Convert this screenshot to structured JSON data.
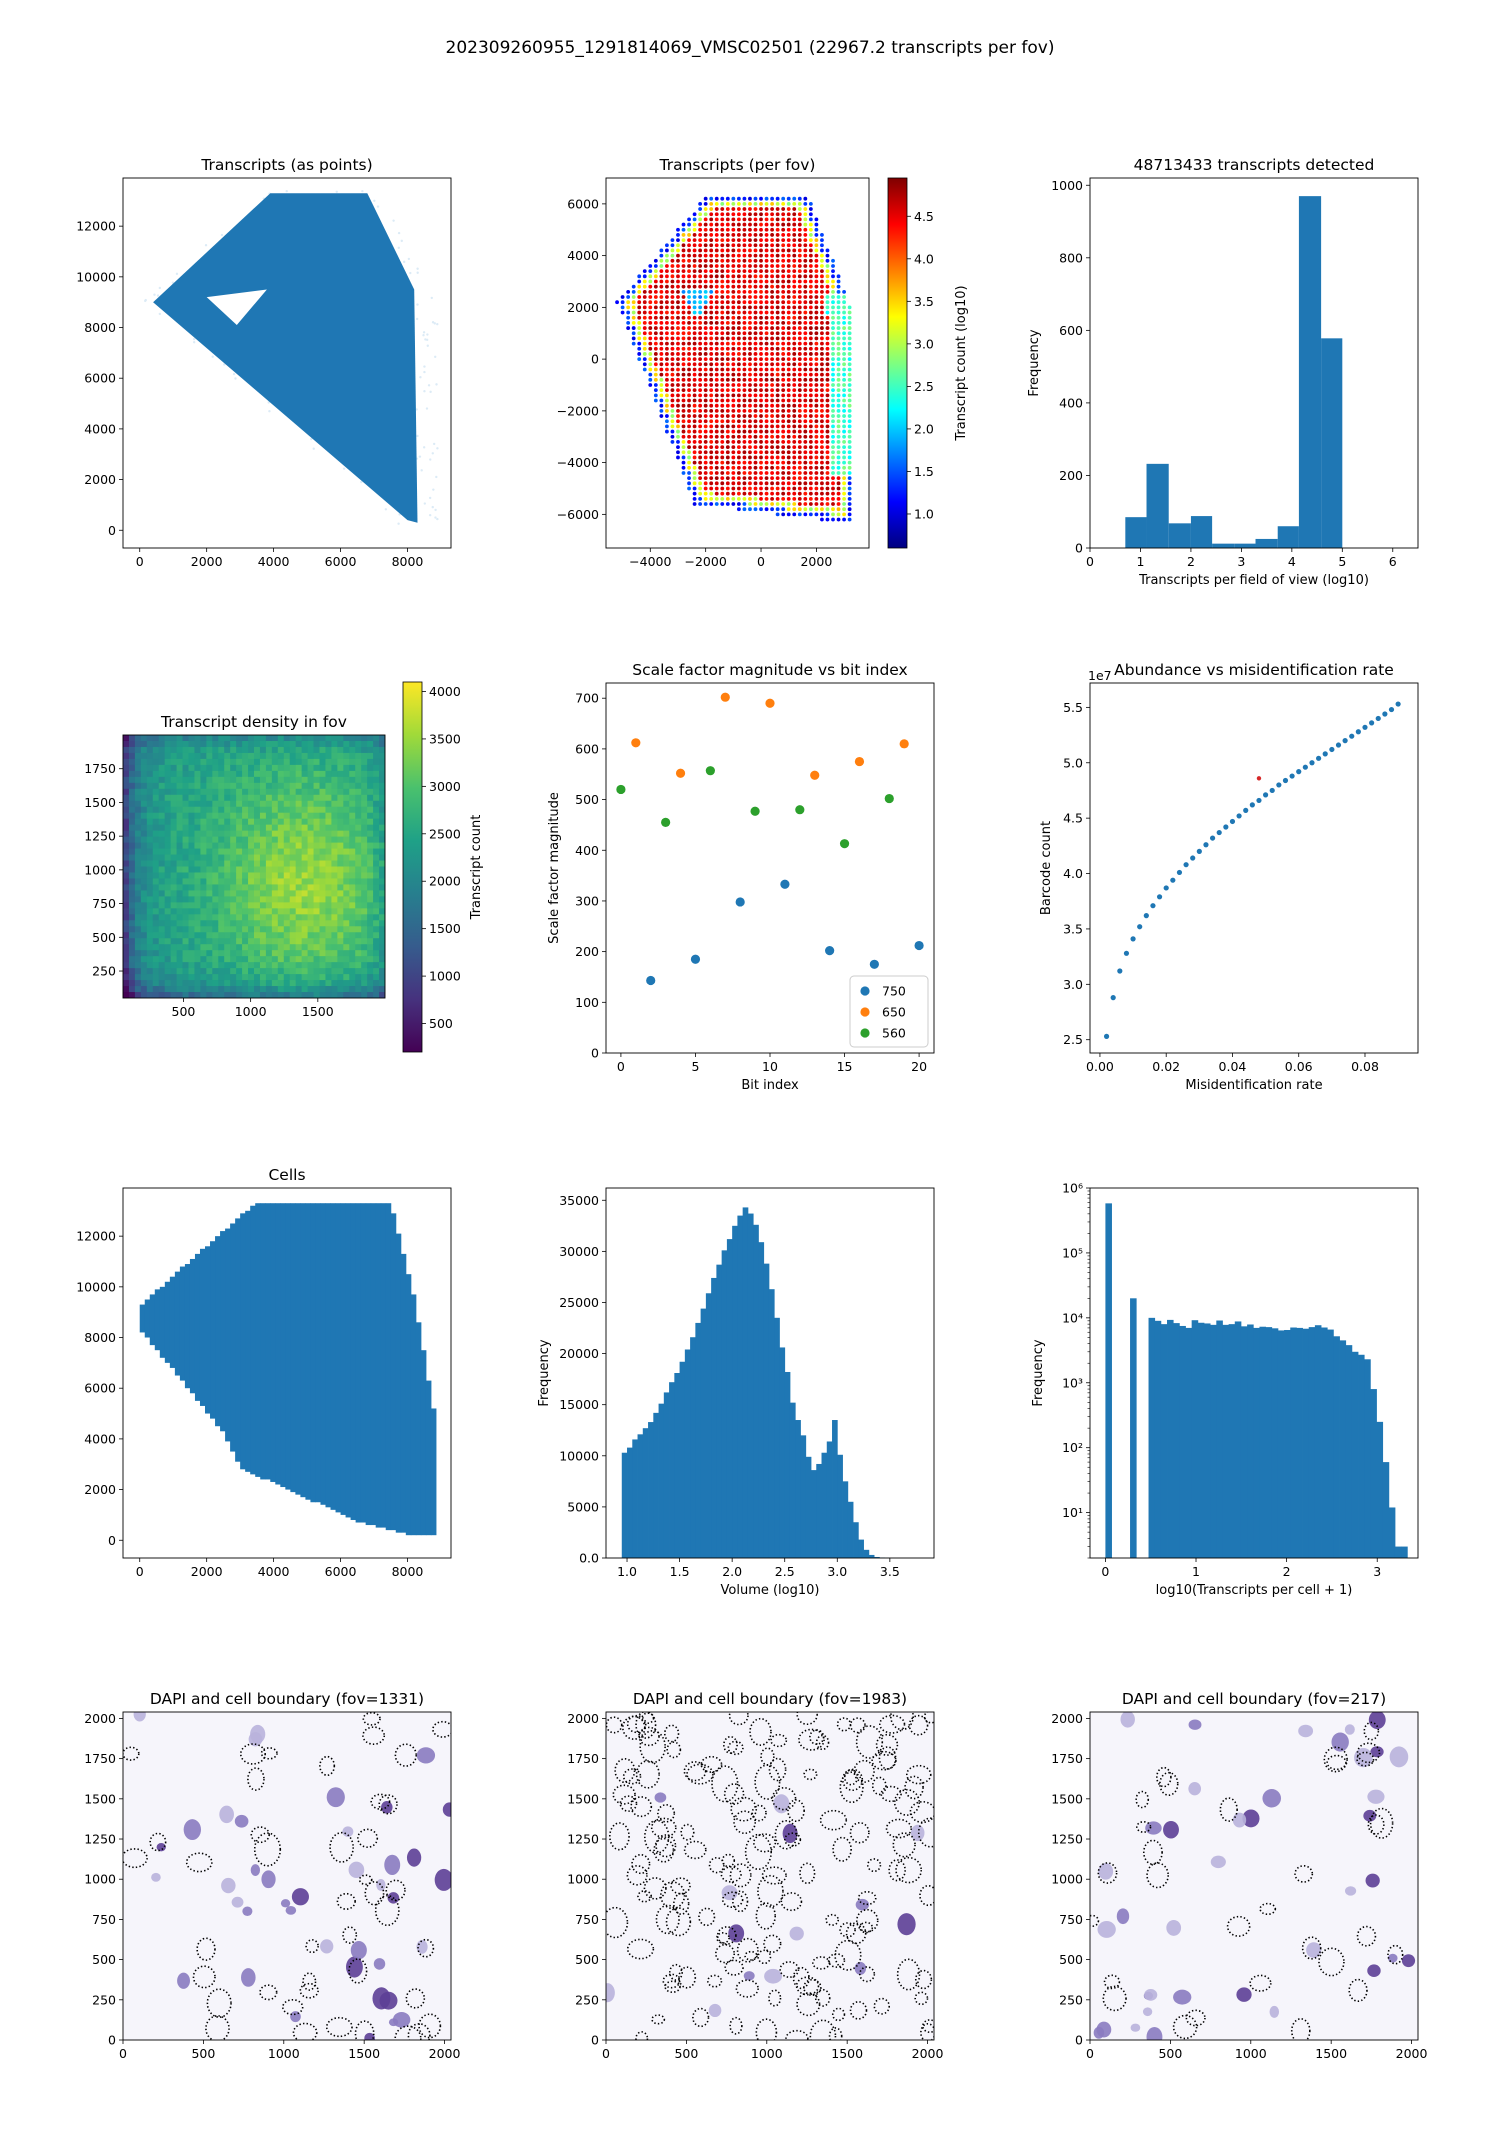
{
  "figure": {
    "suptitle": "202309260955_1291814069_VMSC02501 (22967.2 transcripts per fov)"
  },
  "colors": {
    "blue": "#1f77b4",
    "orange": "#ff7f0e",
    "green": "#2ca02c",
    "red": "#d62728"
  },
  "chart_data": [
    {
      "id": "p1",
      "type": "scatter",
      "title": "Transcripts (as points)",
      "xlabel": "",
      "ylabel": "",
      "xlim": [
        -500,
        9300
      ],
      "ylim": [
        -700,
        13900
      ],
      "xticks": [
        0,
        2000,
        4000,
        6000,
        8000
      ],
      "yticks": [
        0,
        2000,
        4000,
        6000,
        8000,
        10000,
        12000
      ],
      "tissue_outline": [
        [
          400,
          9000
        ],
        [
          3900,
          13300
        ],
        [
          6800,
          13300
        ],
        [
          8200,
          9500
        ],
        [
          8300,
          300
        ],
        [
          8000,
          400
        ],
        [
          400,
          9000
        ]
      ],
      "hole_outline": [
        [
          2000,
          9200
        ],
        [
          3800,
          9500
        ],
        [
          2900,
          8100
        ],
        [
          2000,
          9200
        ]
      ],
      "color": "#1f77b4"
    },
    {
      "id": "p2",
      "type": "heatmap",
      "title": "Transcripts (per fov)",
      "xlabel": "",
      "ylabel": "",
      "xlim": [
        -5600,
        3900
      ],
      "ylim": [
        -7300,
        7000
      ],
      "xticks": [
        -4000,
        -2000,
        0,
        2000
      ],
      "yticks": [
        -6000,
        -4000,
        -2000,
        0,
        2000,
        4000,
        6000
      ],
      "colorbar": {
        "label": "Transcript count (log10)",
        "range": [
          0.6,
          4.95
        ],
        "ticks": [
          1.0,
          1.5,
          2.0,
          2.5,
          3.0,
          3.5,
          4.0,
          4.5
        ],
        "colormap": "jet"
      },
      "grid_spacing": 200
    },
    {
      "id": "p3",
      "type": "bar",
      "title": "48713433 transcripts detected",
      "xlabel": "Transcripts per field of view (log10)",
      "ylabel": "Frequency",
      "xlim": [
        0,
        6.5
      ],
      "ylim": [
        0,
        1020
      ],
      "xticks": [
        0,
        1,
        2,
        3,
        4,
        5,
        6
      ],
      "yticks": [
        0,
        200,
        400,
        600,
        800,
        1000
      ],
      "bin_edges": [
        0.7,
        1.12,
        1.56,
        2.0,
        2.42,
        2.86,
        3.28,
        3.72,
        4.14,
        4.58,
        5.0
      ],
      "values": [
        85,
        232,
        68,
        88,
        12,
        12,
        25,
        60,
        970,
        578
      ]
    },
    {
      "id": "p4",
      "type": "heatmap",
      "title": "Transcript density in fov",
      "xlabel": "",
      "ylabel": "",
      "xlim": [
        50,
        2000
      ],
      "ylim": [
        50,
        2000
      ],
      "xticks": [
        500,
        1000,
        1500
      ],
      "yticks": [
        250,
        500,
        750,
        1000,
        1250,
        1500,
        1750
      ],
      "colorbar": {
        "label": "Transcript count",
        "range": [
          200,
          4100
        ],
        "ticks": [
          500,
          1000,
          1500,
          2000,
          2500,
          3000,
          3500,
          4000
        ],
        "colormap": "viridis"
      }
    },
    {
      "id": "p5",
      "type": "scatter",
      "title": "Scale factor magnitude vs bit index",
      "xlabel": "Bit index",
      "ylabel": "Scale factor magnitude",
      "xlim": [
        -1,
        21
      ],
      "ylim": [
        0,
        730
      ],
      "xticks": [
        0,
        5,
        10,
        15,
        20
      ],
      "yticks": [
        0,
        100,
        200,
        300,
        400,
        500,
        600,
        700
      ],
      "legend": "lower right",
      "series": [
        {
          "name": "750",
          "color": "#1f77b4",
          "x": [
            2,
            5,
            8,
            11,
            14,
            17,
            20
          ],
          "y": [
            143,
            185,
            298,
            333,
            202,
            175,
            212
          ]
        },
        {
          "name": "650",
          "color": "#ff7f0e",
          "x": [
            1,
            4,
            7,
            10,
            13,
            16,
            19
          ],
          "y": [
            612,
            552,
            702,
            690,
            548,
            575,
            610
          ]
        },
        {
          "name": "560",
          "color": "#2ca02c",
          "x": [
            0,
            3,
            6,
            9,
            12,
            15,
            18
          ],
          "y": [
            520,
            455,
            557,
            477,
            480,
            413,
            502
          ]
        }
      ]
    },
    {
      "id": "p6",
      "type": "scatter",
      "title": "Abundance vs misidentification rate",
      "xlabel": "Misidentification rate",
      "ylabel": "Barcode count",
      "xlim": [
        -0.003,
        0.096
      ],
      "ylim": [
        2.38,
        5.72
      ],
      "xticks": [
        0.0,
        0.02,
        0.04,
        0.06,
        0.08
      ],
      "yticks": [
        2.5,
        3.0,
        3.5,
        4.0,
        4.5,
        5.0,
        5.5
      ],
      "offset_label": "1e7",
      "series": [
        {
          "name": "",
          "color": "#1f77b4",
          "x": [
            0.002,
            0.004,
            0.006,
            0.008,
            0.01,
            0.012,
            0.014,
            0.016,
            0.018,
            0.02,
            0.022,
            0.024,
            0.026,
            0.028,
            0.03,
            0.032,
            0.034,
            0.036,
            0.038,
            0.04,
            0.042,
            0.044,
            0.046,
            0.048,
            0.05,
            0.052,
            0.054,
            0.056,
            0.058,
            0.06,
            0.062,
            0.064,
            0.066,
            0.068,
            0.07,
            0.072,
            0.074,
            0.076,
            0.078,
            0.08,
            0.082,
            0.084,
            0.086,
            0.088,
            0.09
          ],
          "y": [
            2.53,
            2.88,
            3.12,
            3.28,
            3.41,
            3.52,
            3.62,
            3.71,
            3.79,
            3.87,
            3.94,
            4.01,
            4.08,
            4.14,
            4.2,
            4.26,
            4.32,
            4.37,
            4.42,
            4.47,
            4.52,
            4.57,
            4.62,
            4.66,
            4.71,
            4.75,
            4.8,
            4.84,
            4.88,
            4.92,
            4.96,
            5.0,
            5.04,
            5.08,
            5.12,
            5.16,
            5.2,
            5.24,
            5.28,
            5.32,
            5.36,
            5.4,
            5.44,
            5.48,
            5.53
          ]
        },
        {
          "name": "",
          "color": "#d62728",
          "x": [
            0.048
          ],
          "y": [
            4.86
          ]
        }
      ]
    },
    {
      "id": "p7",
      "type": "scatter",
      "title": "Cells",
      "xlabel": "",
      "ylabel": "",
      "xlim": [
        -500,
        9300
      ],
      "ylim": [
        -700,
        13900
      ],
      "xticks": [
        0,
        2000,
        4000,
        6000,
        8000
      ],
      "yticks": [
        0,
        2000,
        4000,
        6000,
        8000,
        10000,
        12000
      ],
      "tissue_outline": [
        [
          0,
          9200
        ],
        [
          0,
          8300
        ],
        [
          2500,
          4200
        ],
        [
          3000,
          2800
        ],
        [
          6500,
          700
        ],
        [
          8000,
          200
        ],
        [
          8900,
          200
        ],
        [
          8900,
          4200
        ],
        [
          8200,
          9500
        ],
        [
          7500,
          13300
        ],
        [
          3400,
          13200
        ],
        [
          0,
          9200
        ]
      ],
      "color": "#1f77b4"
    },
    {
      "id": "p8",
      "type": "bar",
      "title": "",
      "xlabel": "Volume (log10)",
      "ylabel": "Frequency",
      "xlim": [
        0.8,
        3.92
      ],
      "ylim": [
        0,
        36200
      ],
      "xticks": [
        1.0,
        1.5,
        2.0,
        2.5,
        3.0,
        3.5
      ],
      "yticks": [
        0,
        5000,
        10000,
        15000,
        20000,
        25000,
        30000,
        35000
      ],
      "bin_edges": [
        0.95,
        1.0,
        1.05,
        1.1,
        1.15,
        1.2,
        1.25,
        1.3,
        1.35,
        1.4,
        1.45,
        1.5,
        1.55,
        1.6,
        1.65,
        1.7,
        1.75,
        1.8,
        1.85,
        1.9,
        1.95,
        2.0,
        2.05,
        2.1,
        2.15,
        2.2,
        2.25,
        2.3,
        2.35,
        2.4,
        2.45,
        2.5,
        2.55,
        2.6,
        2.65,
        2.7,
        2.75,
        2.8,
        2.85,
        2.9,
        2.95,
        3.0,
        3.05,
        3.1,
        3.15,
        3.2,
        3.25,
        3.3,
        3.35,
        3.4,
        3.45,
        3.5
      ],
      "values": [
        10300,
        10800,
        11600,
        12100,
        12700,
        13300,
        14200,
        15100,
        16200,
        17200,
        18100,
        19200,
        20400,
        21600,
        23000,
        24400,
        25900,
        27400,
        28700,
        30100,
        31200,
        32500,
        33500,
        34300,
        33700,
        32600,
        30900,
        28800,
        26300,
        23500,
        20600,
        18200,
        15200,
        13500,
        12000,
        9900,
        8600,
        9200,
        10300,
        11400,
        13500,
        10100,
        7500,
        5500,
        3500,
        1800,
        800,
        300,
        100,
        50,
        20
      ]
    },
    {
      "id": "p9",
      "type": "bar",
      "title": "",
      "xlabel": "log10(Transcripts per cell + 1)",
      "ylabel": "Frequency",
      "yscale": "log",
      "xlim": [
        -0.17,
        3.45
      ],
      "ylim": [
        2,
        1000000
      ],
      "xticks": [
        0,
        1,
        2,
        3
      ],
      "xticklabels": [
        "0",
        "1",
        "2",
        "3"
      ],
      "yticks": [
        10,
        100,
        1000,
        10000,
        100000,
        1000000
      ],
      "yticklabels": [
        "10¹",
        "10²",
        "10³",
        "10⁴",
        "10⁵",
        "10⁶"
      ],
      "bin_edges": [
        0.0,
        0.068,
        0.272,
        0.34,
        0.476,
        0.544,
        0.612,
        0.68,
        0.748,
        0.816,
        0.884,
        0.952,
        1.02,
        1.088,
        1.156,
        1.224,
        1.292,
        1.36,
        1.428,
        1.496,
        1.564,
        1.632,
        1.7,
        1.768,
        1.836,
        1.904,
        1.972,
        2.04,
        2.108,
        2.176,
        2.244,
        2.312,
        2.38,
        2.448,
        2.516,
        2.584,
        2.652,
        2.72,
        2.788,
        2.856,
        2.924,
        2.992,
        3.06,
        3.128,
        3.196,
        3.264,
        3.332
      ],
      "values": [
        580000,
        0,
        20000,
        0,
        10000,
        9000,
        8000,
        9300,
        8300,
        7500,
        7000,
        9200,
        8400,
        8200,
        7800,
        9100,
        7800,
        8000,
        8800,
        7400,
        7900,
        7000,
        7300,
        7200,
        6900,
        6400,
        6500,
        7100,
        7000,
        6800,
        7200,
        7700,
        7100,
        6600,
        5200,
        4500,
        3800,
        3000,
        2700,
        2300,
        800,
        250,
        60,
        12,
        3,
        3
      ]
    },
    {
      "id": "p10",
      "type": "scatter",
      "title": "DAPI and cell boundary (fov=1331)",
      "xlabel": "",
      "ylabel": "",
      "xlim": [
        0,
        2040
      ],
      "ylim": [
        0,
        2040
      ],
      "xticks": [
        0,
        500,
        1000,
        1500,
        2000
      ],
      "yticks": [
        0,
        250,
        500,
        750,
        1000,
        1250,
        1500,
        1750,
        2000
      ],
      "seed": 1331,
      "cells": 42,
      "nuclei": 40
    },
    {
      "id": "p11",
      "type": "scatter",
      "title": "DAPI and cell boundary (fov=1983)",
      "xlabel": "",
      "ylabel": "",
      "xlim": [
        0,
        2040
      ],
      "ylim": [
        0,
        2040
      ],
      "xticks": [
        0,
        500,
        1000,
        1500,
        2000
      ],
      "yticks": [
        0,
        250,
        500,
        750,
        1000,
        1250,
        1500,
        1750,
        2000
      ],
      "seed": 1983,
      "cells": 150,
      "nuclei": 14
    },
    {
      "id": "p12",
      "type": "scatter",
      "title": "DAPI and cell boundary (fov=217)",
      "xlabel": "",
      "ylabel": "",
      "xlim": [
        0,
        2040
      ],
      "ylim": [
        0,
        2040
      ],
      "xticks": [
        0,
        500,
        1000,
        1500,
        2000
      ],
      "yticks": [
        0,
        250,
        500,
        750,
        1000,
        1250,
        1500,
        1750,
        2000
      ],
      "seed": 217,
      "cells": 30,
      "nuclei": 38
    }
  ]
}
